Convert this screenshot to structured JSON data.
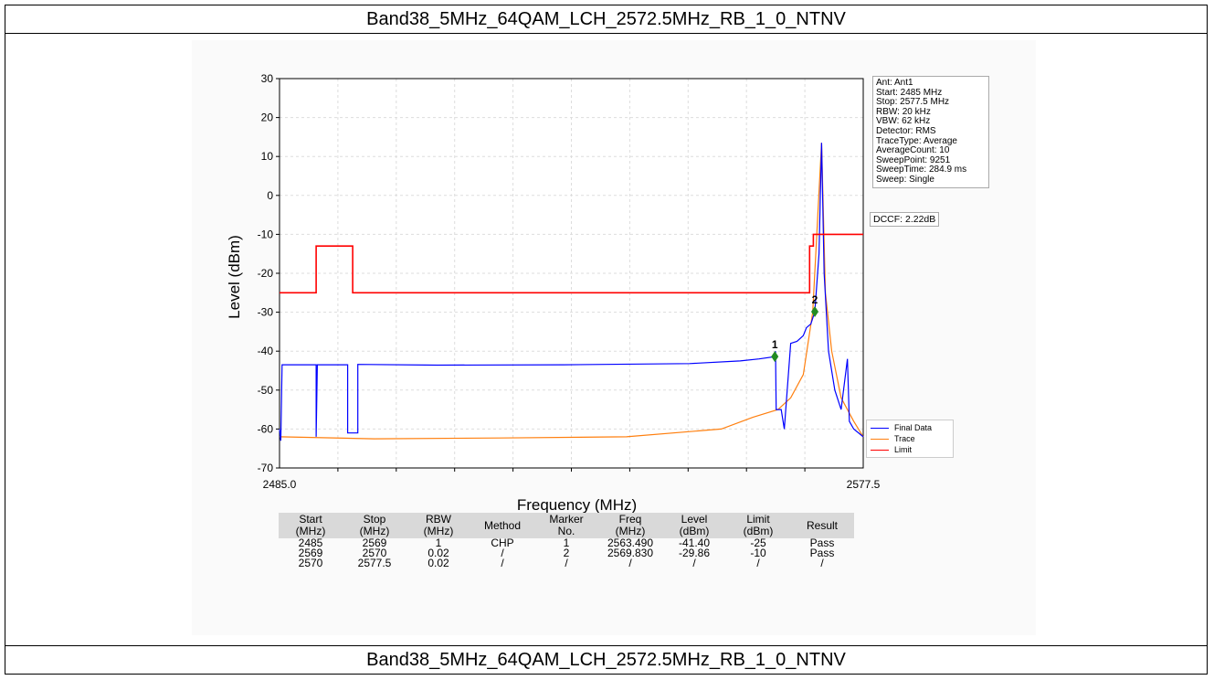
{
  "caption_top": "Band38_5MHz_64QAM_LCH_2572.5MHz_RB_1_0_NTNV",
  "caption_bottom": "Band38_5MHz_64QAM_LCH_2572.5MHz_RB_1_0_NTNV",
  "info": [
    "Ant: Ant1",
    "Start: 2485 MHz",
    "Stop: 2577.5 MHz",
    "RBW: 20 kHz",
    "VBW: 62 kHz",
    "Detector: RMS",
    "TraceType: Average",
    "AverageCount: 10",
    "SweepPoint: 9251",
    "SweepTime: 284.9 ms",
    "Sweep: Single"
  ],
  "dccf": "DCCF: 2.22dB",
  "colors": {
    "final": "#0000ff",
    "trace": "#ff7f0e",
    "limit": "#ff0000",
    "marker": "#228b22"
  },
  "chart_data": {
    "type": "line",
    "xlabel": "Frequency (MHz)",
    "ylabel": "Level (dBm)",
    "xlim": [
      2485.0,
      2577.5
    ],
    "ylim": [
      -70,
      30
    ],
    "x_tick_labels": [
      "2485.0",
      "2577.5"
    ],
    "y_ticks": [
      30,
      20,
      10,
      0,
      -10,
      -20,
      -30,
      -40,
      -50,
      -60,
      -70
    ],
    "grid": true,
    "legend_position": "bottom-right",
    "series": [
      {
        "name": "Final Data",
        "color": "#0000ff",
        "points": [
          [
            2485.0,
            -60
          ],
          [
            2485.2,
            -63
          ],
          [
            2485.4,
            -43.5
          ],
          [
            2490.8,
            -43.5
          ],
          [
            2490.8,
            -62
          ],
          [
            2491.0,
            -43.5
          ],
          [
            2495.8,
            -43.5
          ],
          [
            2495.8,
            -61
          ],
          [
            2497.4,
            -61
          ],
          [
            2497.4,
            -43.4
          ],
          [
            2510,
            -43.6
          ],
          [
            2530,
            -43.5
          ],
          [
            2550,
            -43.2
          ],
          [
            2558,
            -42.5
          ],
          [
            2561,
            -42
          ],
          [
            2563.49,
            -41.4
          ],
          [
            2563.6,
            -40
          ],
          [
            2563.7,
            -55
          ],
          [
            2564.5,
            -55
          ],
          [
            2565,
            -60
          ],
          [
            2566,
            -38
          ],
          [
            2567,
            -37.5
          ],
          [
            2568,
            -36
          ],
          [
            2568.5,
            -34
          ],
          [
            2569.2,
            -33
          ],
          [
            2569.83,
            -29.86
          ],
          [
            2570.5,
            -15
          ],
          [
            2570.9,
            13.5
          ],
          [
            2571.3,
            -20
          ],
          [
            2572,
            -40
          ],
          [
            2573,
            -50
          ],
          [
            2574,
            -55
          ],
          [
            2575,
            -42
          ],
          [
            2575.3,
            -58
          ],
          [
            2576,
            -60
          ],
          [
            2577.5,
            -62
          ]
        ]
      },
      {
        "name": "Trace",
        "color": "#ff7f0e",
        "points": [
          [
            2485.0,
            -62
          ],
          [
            2500,
            -62.5
          ],
          [
            2520,
            -62.3
          ],
          [
            2540,
            -62
          ],
          [
            2555,
            -60
          ],
          [
            2560,
            -57
          ],
          [
            2564,
            -55
          ],
          [
            2566,
            -52
          ],
          [
            2568,
            -46
          ],
          [
            2569.5,
            -30
          ],
          [
            2570.9,
            13.5
          ],
          [
            2571.5,
            -25
          ],
          [
            2572.5,
            -40
          ],
          [
            2574,
            -52
          ],
          [
            2576,
            -58
          ],
          [
            2577.5,
            -62
          ]
        ]
      },
      {
        "name": "Limit",
        "color": "#ff0000",
        "points": [
          [
            2485.0,
            -25
          ],
          [
            2490.8,
            -25
          ],
          [
            2490.8,
            -13
          ],
          [
            2496.6,
            -13
          ],
          [
            2496.6,
            -25
          ],
          [
            2569,
            -25
          ],
          [
            2569,
            -13
          ],
          [
            2569.6,
            -13
          ],
          [
            2569.6,
            -10
          ],
          [
            2570.4,
            -10
          ],
          [
            2570.4,
            -10
          ],
          [
            2577.5,
            -10
          ]
        ]
      }
    ],
    "markers": [
      {
        "label": "1",
        "freq": 2563.49,
        "level": -41.4
      },
      {
        "label": "2",
        "freq": 2569.83,
        "level": -29.86
      }
    ]
  },
  "table": {
    "headers": [
      [
        "Start",
        "(MHz)"
      ],
      [
        "Stop",
        "(MHz)"
      ],
      [
        "RBW",
        "(MHz)"
      ],
      [
        "Method",
        ""
      ],
      [
        "Marker",
        "No."
      ],
      [
        "Freq",
        "(MHz)"
      ],
      [
        "Level",
        "(dBm)"
      ],
      [
        "Limit",
        "(dBm)"
      ],
      [
        "Result",
        ""
      ]
    ],
    "rows": [
      [
        "2485",
        "2569",
        "1",
        "CHP",
        "1",
        "2563.490",
        "-41.40",
        "-25",
        "Pass"
      ],
      [
        "2569",
        "2570",
        "0.02",
        "/",
        "2",
        "2569.830",
        "-29.86",
        "-10",
        "Pass"
      ],
      [
        "2570",
        "2577.5",
        "0.02",
        "/",
        "/",
        "/",
        "/",
        "/",
        "/"
      ]
    ]
  }
}
